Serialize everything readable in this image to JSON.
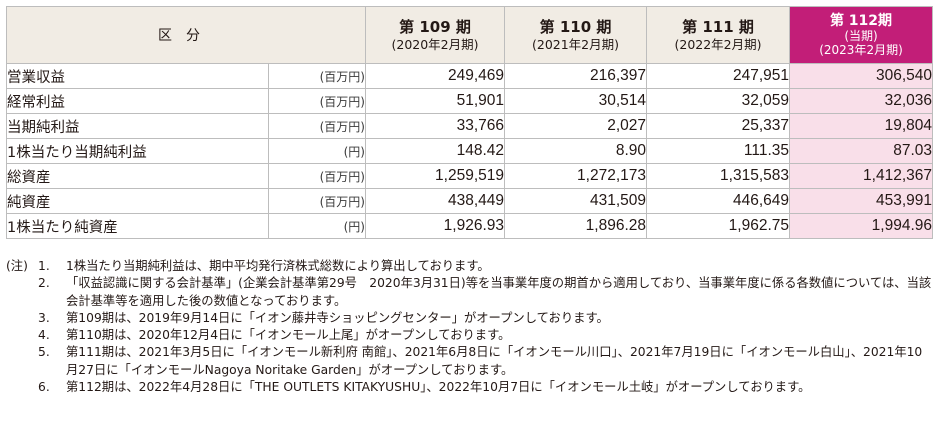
{
  "table": {
    "header_label": "区分",
    "columns": [
      {
        "period": "第 109 期",
        "sub": "(2020年2月期)",
        "sub2": ""
      },
      {
        "period": "第 110 期",
        "sub": "(2021年2月期)",
        "sub2": ""
      },
      {
        "period": "第 111 期",
        "sub": "(2022年2月期)",
        "sub2": ""
      },
      {
        "period": "第 112期",
        "sub": "(当期)",
        "sub2": "(2023年2月期)"
      }
    ],
    "rows": [
      {
        "label": "営業収益",
        "unit": "(百万円)",
        "values": [
          "249,469",
          "216,397",
          "247,951",
          "306,540"
        ]
      },
      {
        "label": "経常利益",
        "unit": "(百万円)",
        "values": [
          "51,901",
          "30,514",
          "32,059",
          "32,036"
        ]
      },
      {
        "label": "当期純利益",
        "unit": "(百万円)",
        "values": [
          "33,766",
          "2,027",
          "25,337",
          "19,804"
        ]
      },
      {
        "label": "1株当たり当期純利益",
        "unit": "(円)",
        "values": [
          "148.42",
          "8.90",
          "111.35",
          "87.03"
        ]
      },
      {
        "label": "総資産",
        "unit": "(百万円)",
        "values": [
          "1,259,519",
          "1,272,173",
          "1,315,583",
          "1,412,367"
        ]
      },
      {
        "label": "純資産",
        "unit": "(百万円)",
        "values": [
          "438,449",
          "431,509",
          "446,649",
          "453,991"
        ]
      },
      {
        "label": "1株当たり純資産",
        "unit": "(円)",
        "values": [
          "1,926.93",
          "1,896.28",
          "1,962.75",
          "1,994.96"
        ]
      }
    ]
  },
  "notes": {
    "lead": "(注)",
    "items": [
      {
        "num": "1.",
        "text": "1株当たり当期純利益は、期中平均発行済株式総数により算出しております。"
      },
      {
        "num": "2.",
        "text": "「収益認識に関する会計基準」(企業会計基準第29号　2020年3月31日)等を当事業年度の期首から適用しており、当事業年度に係る各数値については、当該会計基準等を適用した後の数値となっております。"
      },
      {
        "num": "3.",
        "text": "第109期は、2019年9月14日に「イオン藤井寺ショッピングセンター」がオープンしております。"
      },
      {
        "num": "4.",
        "text": "第110期は、2020年12月4日に「イオンモール上尾」がオープンしております。"
      },
      {
        "num": "5.",
        "text": "第111期は、2021年3月5日に「イオンモール新利府 南館」、2021年6月8日に「イオンモール川口」、2021年7月19日に「イオンモール白山」、2021年10月27日に「イオンモールNagoya Noritake Garden」がオープンしております。"
      },
      {
        "num": "6.",
        "text": "第112期は、2022年4月28日に「THE OUTLETS KITAKYUSHU」、2022年10月7日に「イオンモール土岐」がオープンしております。"
      }
    ]
  }
}
